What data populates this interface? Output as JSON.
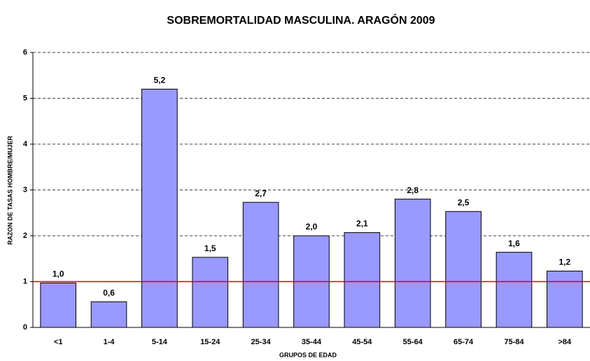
{
  "chart_data": {
    "type": "bar",
    "title": "SOBREMORTALIDAD MASCULINA.  ARAGÓN 2009",
    "x_label": "GRUPOS DE EDAD",
    "y_label": "RAZON DE TASAS HOMBRE/MUJER",
    "categories": [
      "<1",
      "1-4",
      "5-14",
      "15-24",
      "25-34",
      "35-44",
      "45-54",
      "55-64",
      "65-74",
      "75-84",
      ">84"
    ],
    "values": [
      0.97,
      0.56,
      5.2,
      1.53,
      2.73,
      2.0,
      2.07,
      2.8,
      2.53,
      1.64,
      1.23
    ],
    "value_labels": [
      "1,0",
      "0,6",
      "5,2",
      "1,5",
      "2,7",
      "2,0",
      "2,1",
      "2,8",
      "2,5",
      "1,6",
      "1,2"
    ],
    "color": "#9999ff",
    "ylim": [
      0,
      6
    ],
    "yticks": [
      0,
      1,
      2,
      3,
      4,
      5,
      6
    ],
    "grid": true,
    "reference_line": 1,
    "reference_color": "#e00000"
  }
}
